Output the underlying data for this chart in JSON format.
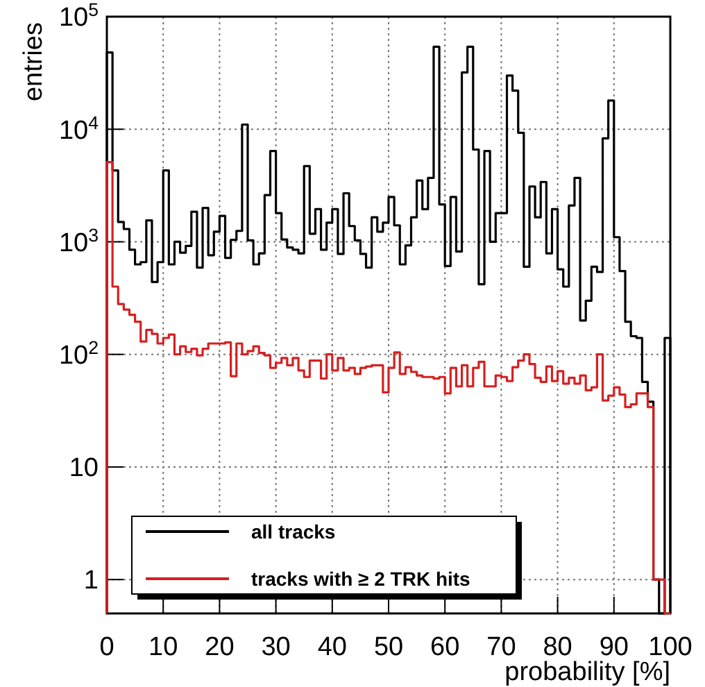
{
  "chart_data": {
    "type": "histogram",
    "xlabel": "probability [%]",
    "ylabel": "entries",
    "bins": [
      0,
      1,
      2,
      3,
      4,
      5,
      6,
      7,
      8,
      9,
      10,
      11,
      12,
      13,
      14,
      15,
      16,
      17,
      18,
      19,
      20,
      21,
      22,
      23,
      24,
      25,
      26,
      27,
      28,
      29,
      30,
      31,
      32,
      33,
      34,
      35,
      36,
      37,
      38,
      39,
      40,
      41,
      42,
      43,
      44,
      45,
      46,
      47,
      48,
      49,
      50,
      51,
      52,
      53,
      54,
      55,
      56,
      57,
      58,
      59,
      60,
      61,
      62,
      63,
      64,
      65,
      66,
      67,
      68,
      69,
      70,
      71,
      72,
      73,
      74,
      75,
      76,
      77,
      78,
      79,
      80,
      81,
      82,
      83,
      84,
      85,
      86,
      87,
      88,
      89,
      90,
      91,
      92,
      93,
      94,
      95,
      96,
      97,
      98,
      99,
      100
    ],
    "series": [
      {
        "name": "all tracks",
        "color": "#000000",
        "values": [
          48000,
          4300,
          1500,
          1300,
          850,
          630,
          660,
          1550,
          440,
          660,
          4300,
          630,
          1000,
          800,
          920,
          1850,
          590,
          2000,
          760,
          1230,
          1700,
          720,
          1040,
          1250,
          11000,
          1030,
          630,
          790,
          2600,
          6400,
          1800,
          1050,
          890,
          850,
          790,
          4700,
          1180,
          1950,
          850,
          1480,
          1950,
          780,
          2700,
          1380,
          1030,
          780,
          590,
          1650,
          1230,
          1480,
          2500,
          1400,
          630,
          930,
          1650,
          3500,
          1950,
          3700,
          54000,
          2150,
          610,
          2500,
          820,
          32000,
          54000,
          6600,
          420,
          6400,
          1000,
          1800,
          1800,
          30000,
          22000,
          9300,
          600,
          3100,
          1650,
          3400,
          790,
          1950,
          570,
          400,
          2100,
          3700,
          200,
          300,
          600,
          540,
          8300,
          18000,
          1100,
          550,
          195,
          145,
          140,
          57,
          38,
          1,
          null,
          140
        ]
      },
      {
        "name": "tracks with ≥ 2 TRK hits",
        "color": "#d62020",
        "values": [
          5100,
          400,
          280,
          250,
          225,
          195,
          130,
          165,
          152,
          125,
          140,
          150,
          100,
          118,
          105,
          112,
          98,
          112,
          125,
          125,
          125,
          128,
          64,
          125,
          100,
          107,
          118,
          103,
          98,
          76,
          84,
          93,
          80,
          93,
          72,
          63,
          88,
          88,
          61,
          100,
          72,
          93,
          72,
          76,
          67,
          76,
          78,
          80,
          80,
          46,
          76,
          104,
          67,
          77,
          70,
          65,
          63,
          63,
          61,
          63,
          45,
          76,
          52,
          80,
          52,
          76,
          86,
          52,
          52,
          65,
          63,
          58,
          77,
          88,
          100,
          82,
          62,
          57,
          78,
          58,
          71,
          55,
          62,
          55,
          65,
          48,
          51,
          100,
          39,
          43,
          51,
          44,
          34,
          36,
          45,
          45,
          34,
          1,
          1,
          null
        ]
      }
    ],
    "xlim": [
      0,
      100
    ],
    "xticks": [
      0,
      10,
      20,
      30,
      40,
      50,
      60,
      70,
      80,
      90,
      100
    ],
    "ylim": [
      0.5,
      100000
    ],
    "log": "y",
    "yticks": [
      {
        "value": 1,
        "label": "1"
      },
      {
        "value": 10,
        "label": "10"
      },
      {
        "value": 100,
        "label": "10$^{2}$"
      },
      {
        "value": 1000,
        "label": "10$^{3}$"
      },
      {
        "value": 10000,
        "label": "10$^{4}$"
      },
      {
        "value": 100000,
        "label": "10$^{5}$"
      }
    ],
    "grid": true,
    "legend": "bottom left"
  }
}
